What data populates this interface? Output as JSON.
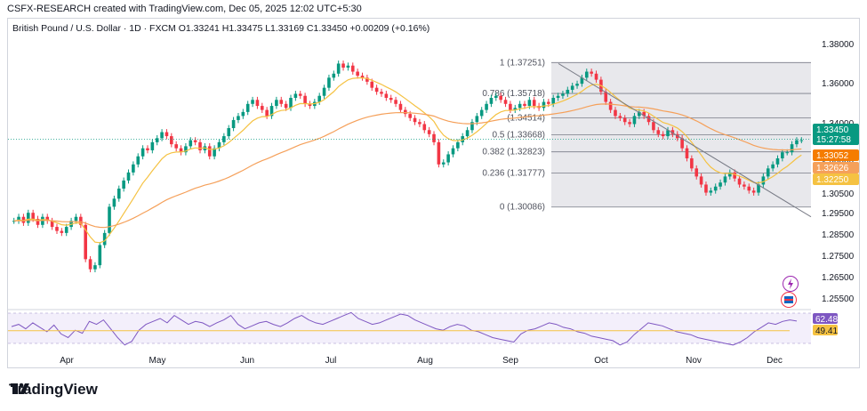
{
  "header": "CSFX-RESEARCH created with TradingView.com, Dec 05, 2025 12:02 UTC+5:30",
  "legend": "British Pound / U.S. Dollar · 1D · FXCM  O1.33241  H1.33475  L1.33169  C1.33450  +0.00209 (+0.16%)",
  "brand": "TradingView",
  "colors": {
    "up": "#089981",
    "down": "#f23645",
    "ema_fast": "#f5c242",
    "ema_slow": "#f5a05a",
    "rsi": "#7e57c2",
    "fib_fill": "#e8e8ec"
  },
  "icons": [
    "lightning-icon",
    "flag-icon"
  ],
  "chart_data": {
    "type": "candlestick",
    "symbol": "British Pound / U.S. Dollar",
    "interval": "1D",
    "ohlc_last": {
      "open": 1.33241,
      "high": 1.33475,
      "low": 1.33169,
      "close": 1.3345,
      "change": "+0.00209 (+0.16%)"
    },
    "x_labels": [
      "Apr",
      "May",
      "Jun",
      "Jul",
      "Aug",
      "Sep",
      "Oct",
      "Nov",
      "Dec"
    ],
    "y_ticks": [
      "1.38000",
      "1.36000",
      "1.34000",
      "1.32000",
      "1.30500",
      "1.29500",
      "1.28500",
      "1.27500",
      "1.26500",
      "1.25500"
    ],
    "ylim": [
      1.25,
      1.385
    ],
    "price_tags": [
      {
        "value": "1.33450",
        "sub": "15:27:58",
        "color": "#089981"
      },
      {
        "value": "1.33052",
        "color": "#f57c00"
      },
      {
        "value": "1.32626",
        "color": "#f5a05a"
      },
      {
        "value": "1.32250",
        "color": "#f5c242"
      }
    ],
    "fib_levels": [
      {
        "label": "1 (1.37251)",
        "value": 1.37251
      },
      {
        "label": "0.786 (1.35718)",
        "value": 1.35718
      },
      {
        "label": "(1.34514)",
        "value": 1.34514
      },
      {
        "label": "0.5 (1.33668)",
        "value": 1.33668
      },
      {
        "label": "0.382 (1.32823)",
        "value": 1.32823
      },
      {
        "label": "0.236 (1.31777)",
        "value": 1.31777
      },
      {
        "label": "0 (1.30086)",
        "value": 1.30086
      }
    ],
    "close_series": [
      1.294,
      1.296,
      1.293,
      1.298,
      1.295,
      1.292,
      1.296,
      1.294,
      1.291,
      1.289,
      1.288,
      1.291,
      1.294,
      1.296,
      1.292,
      1.275,
      1.27,
      1.272,
      1.282,
      1.288,
      1.301,
      1.305,
      1.31,
      1.314,
      1.318,
      1.322,
      1.326,
      1.33,
      1.329,
      1.333,
      1.335,
      1.338,
      1.336,
      1.332,
      1.33,
      1.328,
      1.331,
      1.334,
      1.333,
      1.329,
      1.331,
      1.326,
      1.33,
      1.333,
      1.336,
      1.34,
      1.344,
      1.346,
      1.348,
      1.352,
      1.354,
      1.351,
      1.349,
      1.346,
      1.351,
      1.354,
      1.352,
      1.35,
      1.355,
      1.357,
      1.356,
      1.352,
      1.351,
      1.353,
      1.356,
      1.36,
      1.365,
      1.367,
      1.372,
      1.37,
      1.371,
      1.368,
      1.366,
      1.365,
      1.363,
      1.36,
      1.358,
      1.357,
      1.355,
      1.354,
      1.352,
      1.349,
      1.347,
      1.345,
      1.343,
      1.342,
      1.339,
      1.337,
      1.333,
      1.322,
      1.323,
      1.327,
      1.33,
      1.333,
      1.336,
      1.339,
      1.343,
      1.346,
      1.349,
      1.352,
      1.355,
      1.356,
      1.354,
      1.352,
      1.349,
      1.35,
      1.352,
      1.351,
      1.354,
      1.351,
      1.35,
      1.353,
      1.352,
      1.355,
      1.356,
      1.357,
      1.359,
      1.361,
      1.362,
      1.365,
      1.368,
      1.367,
      1.364,
      1.358,
      1.353,
      1.349,
      1.346,
      1.345,
      1.343,
      1.342,
      1.346,
      1.348,
      1.346,
      1.343,
      1.339,
      1.337,
      1.336,
      1.339,
      1.337,
      1.335,
      1.33,
      1.325,
      1.32,
      1.316,
      1.312,
      1.308,
      1.309,
      1.311,
      1.313,
      1.316,
      1.318,
      1.315,
      1.312,
      1.311,
      1.309,
      1.308,
      1.312,
      1.316,
      1.32,
      1.322,
      1.325,
      1.328,
      1.328,
      1.332,
      1.334,
      1.334
    ],
    "rsi": {
      "values": [
        55,
        58,
        52,
        60,
        54,
        48,
        57,
        45,
        40,
        50,
        46,
        62,
        58,
        64,
        52,
        40,
        30,
        35,
        50,
        58,
        62,
        66,
        60,
        70,
        64,
        58,
        62,
        60,
        55,
        60,
        64,
        70,
        58,
        52,
        56,
        60,
        62,
        58,
        55,
        60,
        66,
        70,
        64,
        60,
        58,
        62,
        66,
        70,
        74,
        66,
        62,
        58,
        60,
        64,
        68,
        72,
        70,
        64,
        60,
        56,
        52,
        50,
        55,
        58,
        56,
        50,
        48,
        44,
        40,
        38,
        36,
        34,
        45,
        50,
        52,
        56,
        60,
        58,
        54,
        52,
        48,
        46,
        42,
        40,
        38,
        36,
        30,
        34,
        44,
        52,
        60,
        58,
        56,
        52,
        48,
        46,
        44,
        40,
        38,
        36,
        34,
        32,
        30,
        34,
        40,
        48,
        54,
        60,
        58,
        62,
        64,
        62.48
      ],
      "ma": 49.41,
      "labels": [
        "62.48",
        "49.41"
      ]
    }
  }
}
